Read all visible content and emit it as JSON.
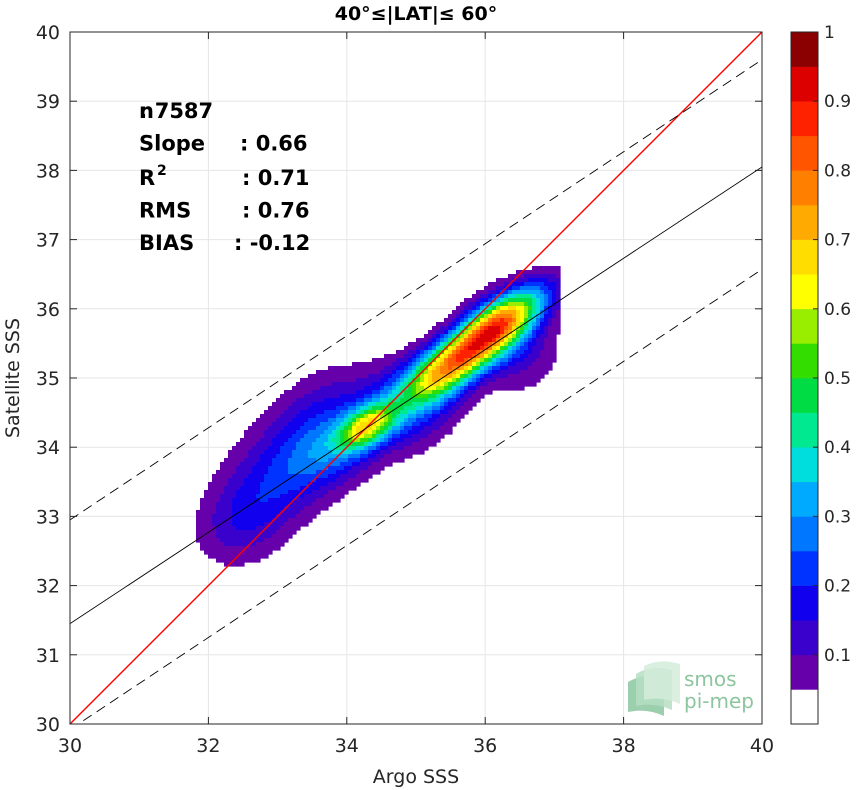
{
  "chart_data": {
    "type": "heatmap",
    "title": "40°≤|LAT|≤ 60°",
    "xlabel": "Argo SSS",
    "ylabel": "Satellite SSS",
    "xlim": [
      30,
      40
    ],
    "ylim": [
      30,
      40
    ],
    "xticks": [
      30,
      32,
      34,
      36,
      38,
      40
    ],
    "yticks": [
      30,
      31,
      32,
      33,
      34,
      35,
      36,
      37,
      38,
      39,
      40
    ],
    "grid": true,
    "stats": [
      {
        "label": "n",
        "value": ": 7587"
      },
      {
        "label": "Slope",
        "value": ": 0.66"
      },
      {
        "label": "R",
        "sup": "2",
        "value": ": 0.71"
      },
      {
        "label": "RMS",
        "value": ": 0.76"
      },
      {
        "label": "BIAS",
        "value": ": -0.12"
      }
    ],
    "lines": [
      {
        "name": "identity",
        "color": "#ff0000",
        "dash": false,
        "x": [
          30,
          40
        ],
        "y": [
          30,
          40
        ]
      },
      {
        "name": "regression",
        "color": "#000000",
        "dash": false,
        "x": [
          30,
          40
        ],
        "y": [
          31.45,
          38.05
        ]
      },
      {
        "name": "upper-bound",
        "color": "#000000",
        "dash": true,
        "x": [
          30,
          40
        ],
        "y": [
          32.95,
          39.6
        ]
      },
      {
        "name": "lower-bound",
        "color": "#000000",
        "dash": true,
        "x": [
          30,
          40
        ],
        "y": [
          29.92,
          36.57
        ]
      }
    ],
    "density_peaks": [
      {
        "x": 34.25,
        "y": 34.3,
        "value": 0.72
      },
      {
        "x": 36.3,
        "y": 35.9,
        "value": 1.0
      }
    ],
    "colorbar": {
      "range": [
        0,
        1
      ],
      "ticks": [
        "0.1",
        "0.2",
        "0.3",
        "0.4",
        "0.5",
        "0.6",
        "0.7",
        "0.8",
        "0.9",
        "1"
      ],
      "levels": [
        {
          "from": 0.0,
          "to": 0.05,
          "color": "#ffffff"
        },
        {
          "from": 0.05,
          "to": 0.1,
          "color": "#6600aa"
        },
        {
          "from": 0.1,
          "to": 0.15,
          "color": "#3a00cc"
        },
        {
          "from": 0.15,
          "to": 0.2,
          "color": "#1100ee"
        },
        {
          "from": 0.2,
          "to": 0.25,
          "color": "#0033ff"
        },
        {
          "from": 0.25,
          "to": 0.3,
          "color": "#0077ff"
        },
        {
          "from": 0.3,
          "to": 0.35,
          "color": "#00aaff"
        },
        {
          "from": 0.35,
          "to": 0.4,
          "color": "#00dddd"
        },
        {
          "from": 0.4,
          "to": 0.45,
          "color": "#00e890"
        },
        {
          "from": 0.45,
          "to": 0.5,
          "color": "#00dd44"
        },
        {
          "from": 0.5,
          "to": 0.55,
          "color": "#33dd00"
        },
        {
          "from": 0.55,
          "to": 0.6,
          "color": "#99ee00"
        },
        {
          "from": 0.6,
          "to": 0.65,
          "color": "#ffff00"
        },
        {
          "from": 0.65,
          "to": 0.7,
          "color": "#ffdd00"
        },
        {
          "from": 0.7,
          "to": 0.75,
          "color": "#ffaa00"
        },
        {
          "from": 0.75,
          "to": 0.8,
          "color": "#ff8000"
        },
        {
          "from": 0.8,
          "to": 0.85,
          "color": "#ff5500"
        },
        {
          "from": 0.85,
          "to": 0.9,
          "color": "#ff2200"
        },
        {
          "from": 0.9,
          "to": 0.95,
          "color": "#dd0000"
        },
        {
          "from": 0.95,
          "to": 1.0,
          "color": "#8b0000"
        }
      ]
    }
  },
  "logo": {
    "line1": "smos",
    "line2": "pi-mep"
  }
}
